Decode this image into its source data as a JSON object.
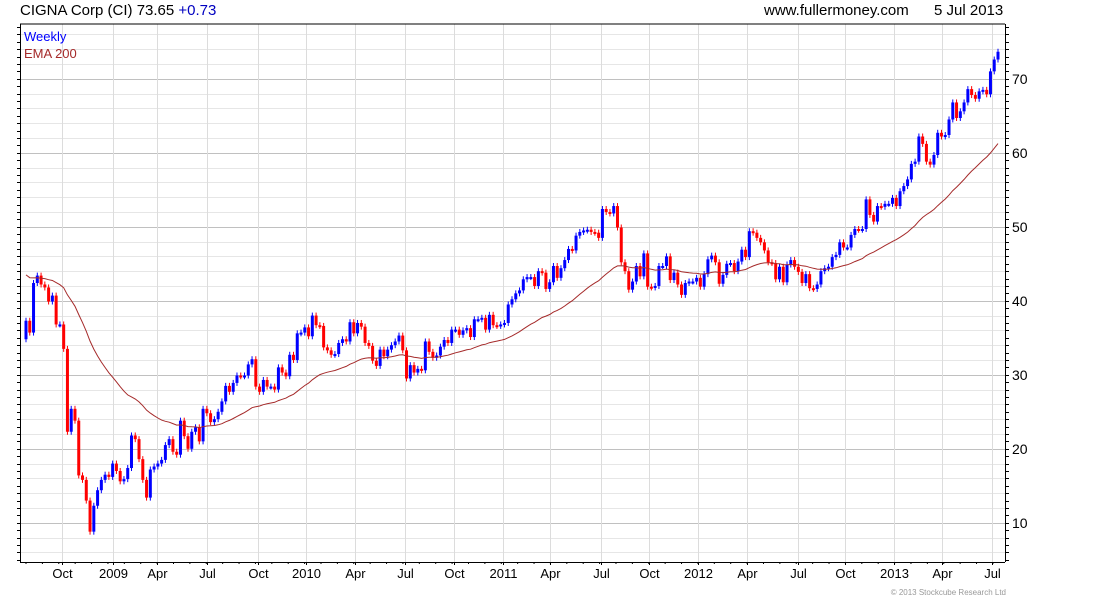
{
  "header": {
    "name": "CIGNA Corp (CI)",
    "price": "73.65",
    "change": "+0.73",
    "site": "www.fullermoney.com",
    "date": "5 Jul 2013"
  },
  "legend": {
    "series": "Weekly",
    "ema": "EMA 200"
  },
  "footer": {
    "copyright": "© 2013 Stockcube Research Ltd"
  },
  "colors": {
    "up": "#0000ff",
    "down": "#ff0000",
    "ema": "#a52a2a",
    "change": "#0000c0"
  },
  "chart_data": {
    "type": "candlestick",
    "title": "CIGNA Corp (CI) weekly",
    "ylim": [
      4.7,
      77.4
    ],
    "y_ticks": [
      {
        "v": 10,
        "label": "10"
      },
      {
        "v": 20,
        "label": "20"
      },
      {
        "v": 30,
        "label": "30"
      },
      {
        "v": 40,
        "label": "40"
      },
      {
        "v": 50,
        "label": "50"
      },
      {
        "v": 60,
        "label": "60"
      },
      {
        "v": 70,
        "label": "70"
      }
    ],
    "x_ticks": [
      {
        "label": "Oct",
        "week": 9.5
      },
      {
        "label": "2009",
        "week": 23
      },
      {
        "label": "Apr",
        "week": 34.9
      },
      {
        "label": "Jul",
        "week": 48.1
      },
      {
        "label": "Oct",
        "week": 61.6
      },
      {
        "label": "2010",
        "week": 74.3
      },
      {
        "label": "Apr",
        "week": 87.3
      },
      {
        "label": "Jul",
        "week": 100.5
      },
      {
        "label": "Oct",
        "week": 113.5
      },
      {
        "label": "2011",
        "week": 126.7
      },
      {
        "label": "Apr",
        "week": 139.2
      },
      {
        "label": "Jul",
        "week": 152.6
      },
      {
        "label": "Oct",
        "week": 165.3
      },
      {
        "label": "2012",
        "week": 178.3
      },
      {
        "label": "Apr",
        "week": 191.5
      },
      {
        "label": "Jul",
        "week": 204.8
      },
      {
        "label": "Oct",
        "week": 217.5
      },
      {
        "label": "2013",
        "week": 230.4
      },
      {
        "label": "Apr",
        "week": 243.1
      },
      {
        "label": "Jul",
        "week": 256.3
      }
    ],
    "first_open": 34.8,
    "ema_seed": 43.5,
    "ema_period_weeks": 40,
    "close": [
      37.3,
      35.7,
      42.4,
      43.4,
      42.2,
      41.8,
      39.9,
      40.7,
      36.8,
      36.8,
      33.5,
      22.3,
      25.4,
      23.8,
      16.4,
      15.8,
      13,
      8.8,
      12.3,
      14.4,
      15.8,
      16.5,
      16.2,
      18,
      17,
      15.6,
      15.9,
      17.4,
      21.8,
      21.3,
      18.6,
      15.8,
      13.4,
      17.2,
      17.6,
      18,
      18.5,
      20.5,
      21.3,
      19.6,
      19.2,
      23.8,
      21.7,
      20,
      22.3,
      22.9,
      21,
      25.4,
      24.8,
      23.6,
      24,
      25,
      26.4,
      28.5,
      27.7,
      28.9,
      29.9,
      29.8,
      29.9,
      31.4,
      32.1,
      28.4,
      27.7,
      29.3,
      28.4,
      28.4,
      28,
      31,
      30.3,
      29.8,
      32.7,
      32,
      35.6,
      35.7,
      36.4,
      35.2,
      38,
      36.7,
      36.6,
      33.7,
      33.3,
      32.7,
      32.8,
      34.3,
      34.8,
      34.5,
      37.1,
      35.6,
      37,
      36.5,
      34.3,
      33.9,
      31.9,
      31.2,
      33.4,
      32.5,
      33.4,
      34,
      34.5,
      35.3,
      33.3,
      29.5,
      31.3,
      30.3,
      30.8,
      30.6,
      34.5,
      33.1,
      32.3,
      32.6,
      33.8,
      34.7,
      34.3,
      36.1,
      36.1,
      35.4,
      36,
      36.3,
      35.1,
      37.5,
      37.5,
      37.7,
      36.1,
      38.1,
      36.7,
      36.6,
      36.8,
      37,
      39.5,
      40.2,
      41,
      41.4,
      42.9,
      43.2,
      43.2,
      42,
      44,
      43.8,
      41.6,
      42.5,
      44.7,
      43.1,
      44.4,
      45.5,
      47,
      46.8,
      48.8,
      49.3,
      49.5,
      49.6,
      49.3,
      49.2,
      48.5,
      52.4,
      52,
      51.8,
      52.8,
      49.9,
      45.2,
      44,
      41.5,
      42.6,
      44.7,
      43.3,
      46.4,
      41.9,
      41.8,
      42,
      44.7,
      44.7,
      46,
      42.8,
      43.8,
      42.2,
      40.8,
      42.4,
      42.6,
      42.6,
      43.1,
      41.9,
      43.6,
      45.6,
      46.1,
      45.2,
      42.3,
      43.5,
      45,
      45.1,
      44,
      45.3,
      46.9,
      45.9,
      49.4,
      49.2,
      48.5,
      47.9,
      46.8,
      45.2,
      45.1,
      42.9,
      44.6,
      42.5,
      44.9,
      45.5,
      44.6,
      43.9,
      42.4,
      43.6,
      41.7,
      41.6,
      42.2,
      44,
      44.4,
      44.6,
      45.9,
      46.2,
      47.9,
      47.2,
      47.2,
      48.9,
      49.7,
      49.6,
      49.7,
      53.7,
      51.6,
      50.7,
      52.8,
      52.7,
      53.1,
      53.1,
      53.9,
      52.8,
      54.8,
      55.5,
      56.4,
      58.5,
      58.8,
      62.2,
      61.2,
      58.8,
      58.4,
      59.7,
      62.7,
      62.2,
      62.4,
      64.5,
      66.8,
      64.7,
      65.6,
      66.8,
      68.6,
      67.8,
      67.3,
      68.3,
      68.5,
      67.9,
      71,
      72.6,
      73.65
    ]
  }
}
